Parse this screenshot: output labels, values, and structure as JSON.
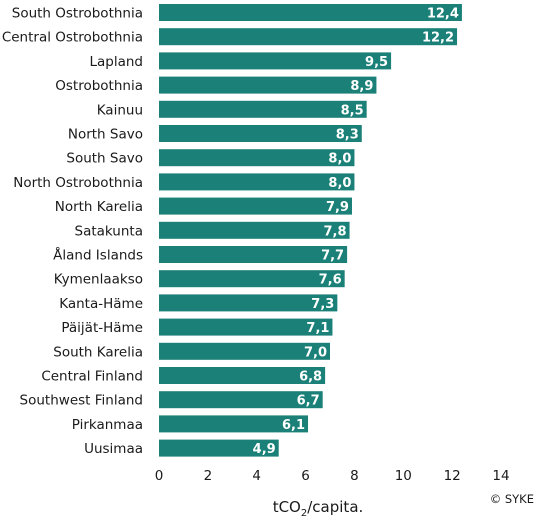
{
  "chart_data": {
    "type": "bar",
    "orientation": "horizontal",
    "categories": [
      "South Ostrobothnia",
      "Central Ostrobothnia",
      "Lapland",
      "Ostrobothnia",
      "Kainuu",
      "North Savo",
      "South Savo",
      "North Ostrobothnia",
      "North Karelia",
      "Satakunta",
      "Åland Islands",
      "Kymenlaakso",
      "Kanta-Häme",
      "Päijät-Häme",
      "South Karelia",
      "Central Finland",
      "Southwest Finland",
      "Pirkanmaa",
      "Uusimaa"
    ],
    "values": [
      12.4,
      12.2,
      9.5,
      8.9,
      8.5,
      8.3,
      8.0,
      8.0,
      7.9,
      7.8,
      7.7,
      7.6,
      7.3,
      7.1,
      7.0,
      6.8,
      6.7,
      6.1,
      4.9
    ],
    "value_labels": [
      "12,4",
      "12,2",
      "9,5",
      "8,9",
      "8,5",
      "8,3",
      "8,0",
      "8,0",
      "7,9",
      "7,8",
      "7,7",
      "7,6",
      "7,3",
      "7,1",
      "7,0",
      "6,8",
      "6,7",
      "6,1",
      "4,9"
    ],
    "xlim": [
      0,
      14
    ],
    "xticks": [
      0,
      2,
      4,
      6,
      8,
      10,
      12,
      14
    ],
    "xlabel_main": "tCO",
    "xlabel_sub": "2",
    "xlabel_suffix": "/capita.",
    "bar_color": "#1a8078",
    "grid": false,
    "credit": "© SYKE"
  }
}
